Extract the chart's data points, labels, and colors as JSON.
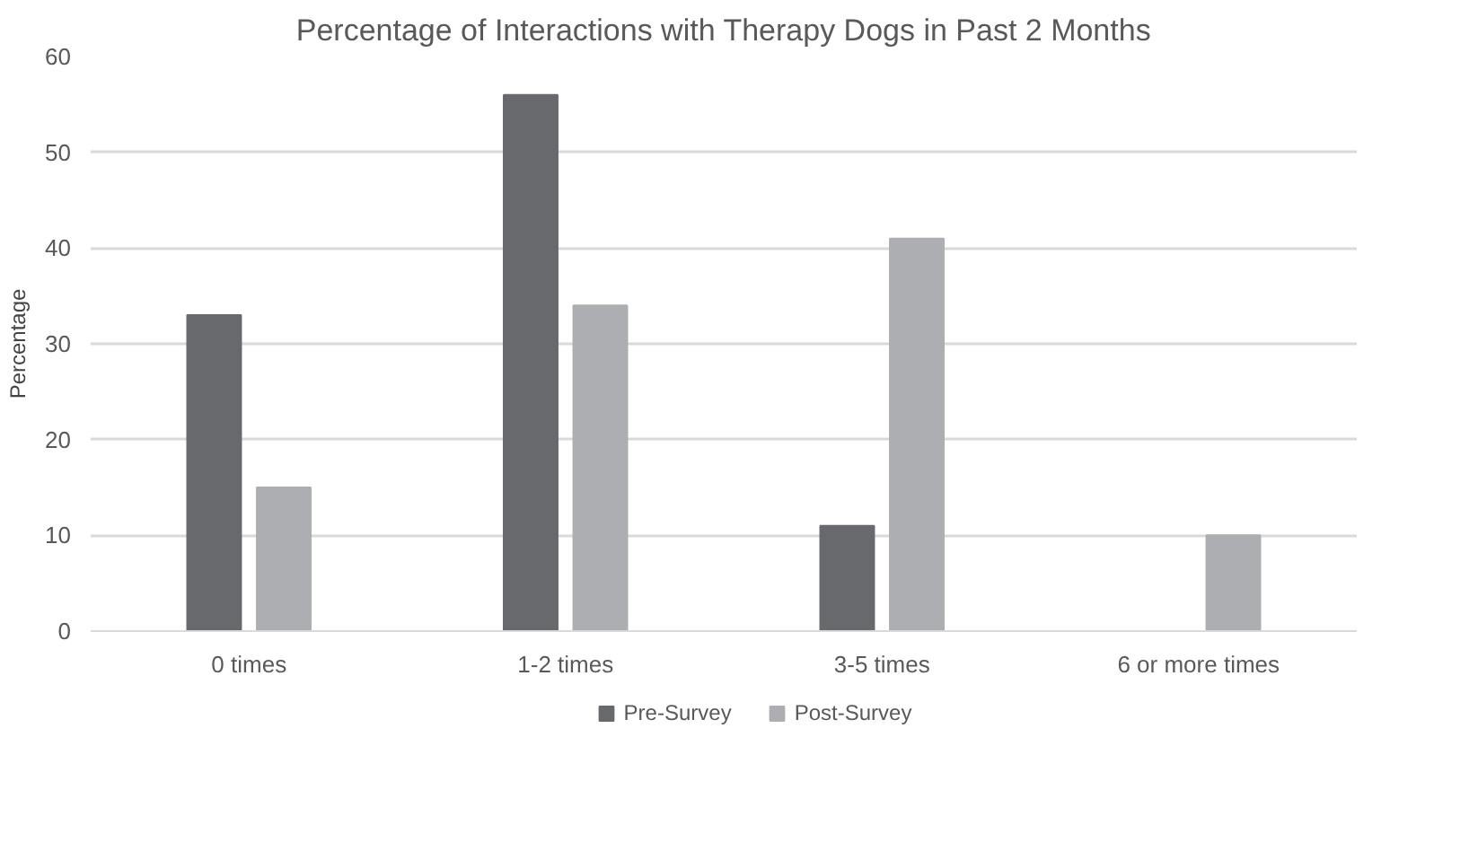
{
  "chart_data": {
    "type": "bar",
    "title": "Percentage of Interactions with Therapy Dogs in Past 2 Months",
    "ylabel": "Percentage",
    "categories": [
      "0 times",
      "1-2 times",
      "3-5 times",
      "6 or more times"
    ],
    "series": [
      {
        "name": "Pre-Survey",
        "color": "#68696d",
        "values": [
          33,
          56,
          11,
          0
        ]
      },
      {
        "name": "Post-Survey",
        "color": "#adaeb2",
        "values": [
          15,
          34,
          41,
          10
        ]
      }
    ],
    "ylim": [
      0,
      60
    ],
    "yticks": [
      0,
      10,
      20,
      30,
      40,
      50,
      60
    ],
    "grid": "y",
    "legend": "bottom"
  }
}
